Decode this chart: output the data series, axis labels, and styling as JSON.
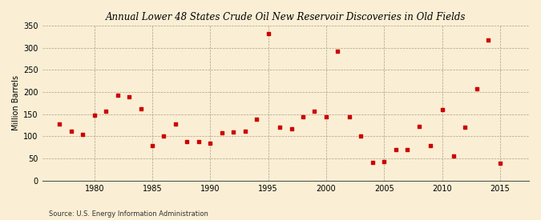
{
  "title": "Annual Lower 48 States Crude Oil New Reservoir Discoveries in Old Fields",
  "ylabel": "Million Barrels",
  "source": "Source: U.S. Energy Information Administration",
  "background_color": "#faefd4",
  "marker_color": "#cc0000",
  "xlim": [
    1975.5,
    2017.5
  ],
  "ylim": [
    0,
    350
  ],
  "xticks": [
    1980,
    1985,
    1990,
    1995,
    2000,
    2005,
    2010,
    2015
  ],
  "yticks": [
    0,
    50,
    100,
    150,
    200,
    250,
    300,
    350
  ],
  "years": [
    1977,
    1978,
    1979,
    1980,
    1981,
    1982,
    1983,
    1984,
    1985,
    1986,
    1987,
    1988,
    1989,
    1990,
    1991,
    1992,
    1993,
    1994,
    1995,
    1996,
    1997,
    1998,
    1999,
    2000,
    2001,
    2002,
    2003,
    2004,
    2005,
    2006,
    2007,
    2008,
    2009,
    2010,
    2011,
    2012,
    2013,
    2014,
    2015
  ],
  "values": [
    128,
    112,
    105,
    148,
    157,
    193,
    190,
    163,
    80,
    100,
    128,
    88,
    88,
    85,
    108,
    110,
    112,
    138,
    332,
    120,
    118,
    145,
    157,
    145,
    293,
    145,
    100,
    42,
    44,
    70,
    70,
    122,
    80,
    160,
    55,
    120,
    207,
    318,
    40
  ]
}
